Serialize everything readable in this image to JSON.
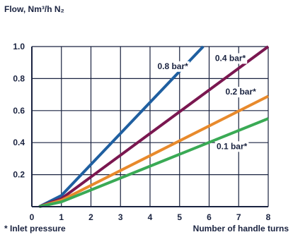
{
  "chart_data": {
    "type": "line",
    "ylabel": "Flow, Nm³/h N₂",
    "xlabel": "Number of handle turns",
    "footnote": "* Inlet pressure",
    "xlim": [
      0,
      8
    ],
    "ylim": [
      0,
      1.0
    ],
    "x_ticks": [
      "0",
      "1",
      "2",
      "3",
      "4",
      "5",
      "6",
      "7",
      "8"
    ],
    "y_ticks": [
      "0.2",
      "0.4",
      "0.6",
      "0.8",
      "1.0"
    ],
    "grid": true,
    "series": [
      {
        "name": "0.8 bar*",
        "color": "#1f5fa0",
        "points": [
          [
            0.25,
            0.0
          ],
          [
            1.0,
            0.07
          ],
          [
            5.8,
            1.0
          ]
        ]
      },
      {
        "name": "0.4 bar*",
        "color": "#7a1750",
        "points": [
          [
            0.25,
            0.0
          ],
          [
            1.0,
            0.05
          ],
          [
            8.0,
            1.0
          ]
        ]
      },
      {
        "name": "0.2 bar*",
        "color": "#e88a2c",
        "points": [
          [
            0.25,
            0.0
          ],
          [
            1.0,
            0.04
          ],
          [
            8.0,
            0.69
          ]
        ]
      },
      {
        "name": "0.1 bar*",
        "color": "#3aaa55",
        "points": [
          [
            0.25,
            0.0
          ],
          [
            1.0,
            0.03
          ],
          [
            8.0,
            0.55
          ]
        ]
      }
    ]
  }
}
